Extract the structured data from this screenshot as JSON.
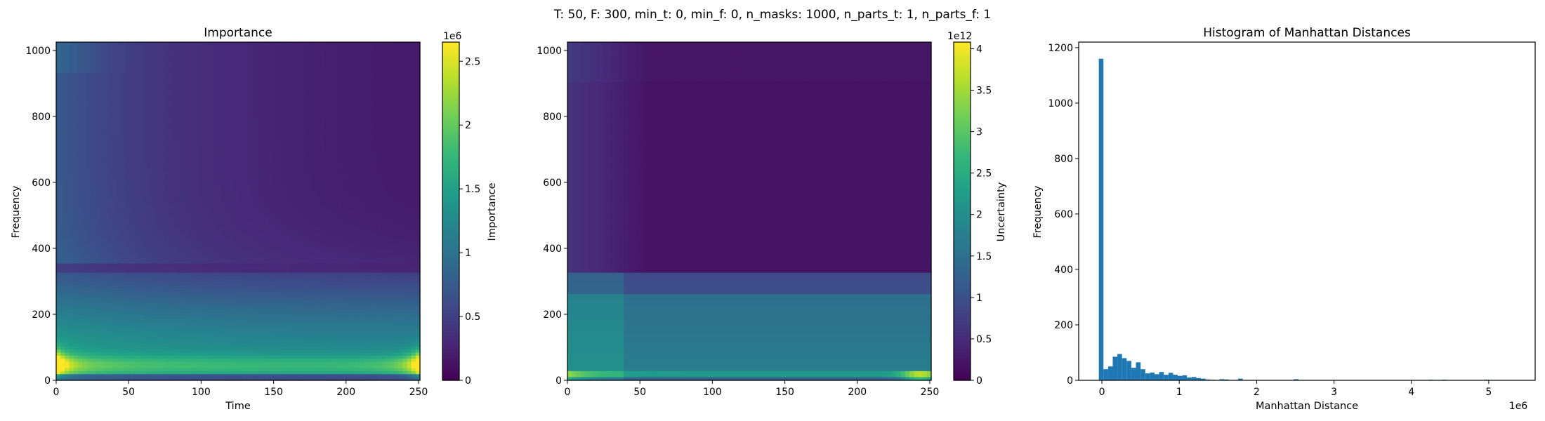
{
  "suptitle": "T: 50, F: 300, min_t: 0, min_f: 0, n_masks: 1000, n_parts_t: 1, n_parts_f: 1",
  "chart_data": [
    {
      "type": "heatmap",
      "title": "Importance",
      "xlabel": "Time",
      "ylabel": "Frequency",
      "xlim": [
        0,
        251
      ],
      "ylim": [
        0,
        1025
      ],
      "xticks": [
        0,
        50,
        100,
        150,
        200,
        250
      ],
      "yticks": [
        0,
        200,
        400,
        600,
        800,
        1000
      ],
      "colormap": "viridis",
      "colorbar": {
        "label": "Importance",
        "min": 0,
        "max": 2650000,
        "offset_label": "1e6",
        "ticks": [
          0,
          0.5,
          1.0,
          1.5,
          2.0,
          2.5
        ]
      },
      "pattern": {
        "bottom_band_max": 2650000,
        "hotspots": [
          {
            "time": 0,
            "freq": 50,
            "value": 2650000
          },
          {
            "time": 251,
            "freq": 50,
            "value": 2600000
          }
        ],
        "low_freq_band_upper": 350,
        "top_left_band_value": 700000
      }
    },
    {
      "type": "heatmap",
      "title": "",
      "xlabel": "",
      "ylabel": "",
      "xlim": [
        0,
        251
      ],
      "ylim": [
        0,
        1025
      ],
      "xticks": [
        0,
        50,
        100,
        150,
        200,
        250
      ],
      "yticks": [
        0,
        200,
        400,
        600,
        800,
        1000
      ],
      "colormap": "viridis",
      "colorbar": {
        "label": "Uncertainty",
        "min": 0,
        "max": 4080000000000,
        "offset_label": "1e12",
        "ticks": [
          0,
          0.5,
          1.0,
          1.5,
          2.0,
          2.5,
          3.0,
          3.5,
          4.0
        ]
      },
      "pattern": {
        "band_step_freq": 325,
        "bright_strip_freq": [
          0,
          30
        ],
        "hotspot": {
          "time": 245,
          "freq": 45,
          "value": 4000000000000
        }
      }
    },
    {
      "type": "bar",
      "title": "Histogram of Manhattan Distances",
      "xlabel": "Manhattan Distance",
      "ylabel": "Frequency",
      "x_offset_label": "1e6",
      "xlim": [
        -0.3,
        5.6
      ],
      "ylim": [
        0,
        1220
      ],
      "xticks": [
        0,
        1,
        2,
        3,
        4,
        5
      ],
      "yticks": [
        0,
        200,
        400,
        600,
        800,
        1000,
        1200
      ],
      "color": "#1f77b4",
      "bin_start": -0.04,
      "bin_width": 0.06,
      "counts": [
        1160,
        40,
        50,
        85,
        95,
        80,
        70,
        45,
        65,
        40,
        25,
        28,
        22,
        30,
        20,
        27,
        20,
        16,
        18,
        10,
        12,
        8,
        6,
        3,
        2,
        1,
        4,
        3,
        1,
        1,
        6,
        1,
        1,
        1,
        1,
        1,
        1,
        1,
        1,
        1,
        1,
        1,
        4,
        1,
        1,
        1,
        1,
        1,
        1,
        1,
        1,
        1,
        1,
        1,
        1,
        1,
        1,
        1,
        1,
        0,
        1,
        1,
        0,
        0,
        1,
        0,
        0,
        1,
        1,
        0,
        0,
        2,
        0,
        0,
        2,
        0,
        0,
        1,
        0,
        0,
        1,
        0,
        0,
        2,
        0,
        0,
        1,
        1,
        0,
        1,
        0,
        0,
        1,
        0,
        0
      ]
    }
  ]
}
